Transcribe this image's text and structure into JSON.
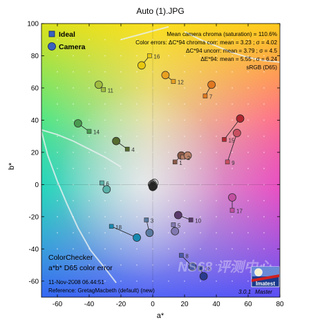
{
  "chart_data": {
    "type": "scatter",
    "title": "Auto (1).JPG",
    "xlabel": "a*",
    "ylabel": "b*",
    "xlim": [
      -70,
      80
    ],
    "ylim": [
      -70,
      100
    ],
    "xticks": [
      -60,
      -40,
      -20,
      0,
      20,
      40,
      60,
      80
    ],
    "yticks": [
      -60,
      -40,
      -20,
      0,
      20,
      40,
      60,
      80,
      100
    ],
    "grid": false,
    "legend": {
      "position": "top-left",
      "ideal_label": "Ideal",
      "camera_label": "Camera"
    },
    "annotations": {
      "mean_chroma": "Mean camera chroma (saturation) = 110.6%",
      "err_corr": "Color errors:  ΔC*94 chroma corr:  mean = 3.23 ;  σ = 4.02",
      "err_uncorr": "ΔC*94 uncorr:  mean = 3.79 ;  σ = 4.5",
      "err_e94": "ΔE*94:  mean = 5.55 ;  σ = 6.24",
      "colorspace": "sRGB (D65)",
      "box_title": "ColorChecker",
      "box_subtitle": "a*b* D65 color error",
      "box_date": "11-Nov-2008 06:44:51",
      "box_reference": "Reference: GretagMacbeth (default) (new)",
      "version": "3.0.1",
      "edition": "Master",
      "logo": "Imatest",
      "watermark": "NS68 评测中心"
    },
    "patches": [
      {
        "id": "1",
        "ideal": [
          14,
          14
        ],
        "camera": [
          18,
          18
        ],
        "color": "#8a5a48"
      },
      {
        "id": "2",
        "ideal": [
          19,
          17
        ],
        "camera": [
          22,
          18
        ],
        "color": "#b88068"
      },
      {
        "id": "3",
        "ideal": [
          -4,
          -22
        ],
        "camera": [
          -2,
          -30
        ],
        "color": "#5a7aa0"
      },
      {
        "id": "4",
        "ideal": [
          -16,
          22
        ],
        "camera": [
          -23,
          27
        ],
        "color": "#556b2f"
      },
      {
        "id": "5",
        "ideal": [
          13,
          -25
        ],
        "camera": [
          14,
          -29
        ],
        "color": "#8278b0"
      },
      {
        "id": "6",
        "ideal": [
          -32,
          1
        ],
        "camera": [
          -29,
          -3
        ],
        "color": "#5ab0a8"
      },
      {
        "id": "7",
        "ideal": [
          33,
          55
        ],
        "camera": [
          37,
          62
        ],
        "color": "#e07820"
      },
      {
        "id": "8",
        "ideal": [
          18,
          -44
        ],
        "camera": [
          25,
          -51
        ],
        "color": "#4a5aa8"
      },
      {
        "id": "9",
        "ideal": [
          47,
          14
        ],
        "camera": [
          53,
          32
        ],
        "color": "#c85060"
      },
      {
        "id": "10",
        "ideal": [
          24,
          -22
        ],
        "camera": [
          16,
          -19
        ],
        "color": "#5a3a6a"
      },
      {
        "id": "11",
        "ideal": [
          -31,
          59
        ],
        "camera": [
          -34,
          62
        ],
        "color": "#a0bc40"
      },
      {
        "id": "12",
        "ideal": [
          13,
          64
        ],
        "camera": [
          8,
          68
        ],
        "color": "#e8a020"
      },
      {
        "id": "13",
        "ideal": [
          30,
          -52
        ],
        "camera": [
          32,
          -57
        ],
        "color": "#2a3a90"
      },
      {
        "id": "14",
        "ideal": [
          -40,
          33
        ],
        "camera": [
          -47,
          38
        ],
        "color": "#4a9a50"
      },
      {
        "id": "15",
        "ideal": [
          45,
          28
        ],
        "camera": [
          55,
          41
        ],
        "color": "#b02830"
      },
      {
        "id": "16",
        "ideal": [
          -2,
          80
        ],
        "camera": [
          -7,
          74
        ],
        "color": "#e8c810"
      },
      {
        "id": "17",
        "ideal": [
          50,
          -16
        ],
        "camera": [
          50,
          -8
        ],
        "color": "#c050a0"
      },
      {
        "id": "18",
        "ideal": [
          -26,
          -26
        ],
        "camera": [
          -10,
          -33
        ],
        "color": "#1888b0"
      },
      {
        "id": "19",
        "ideal": [
          0,
          0
        ],
        "camera": [
          1,
          1
        ],
        "color": "#f0f0f0"
      },
      {
        "id": "20",
        "ideal": [
          0,
          0
        ],
        "camera": [
          0,
          0.5
        ],
        "color": "#c8c8c8"
      },
      {
        "id": "21",
        "ideal": [
          0,
          0
        ],
        "camera": [
          -0.5,
          0
        ],
        "color": "#a0a0a0"
      },
      {
        "id": "22",
        "ideal": [
          0,
          0
        ],
        "camera": [
          0,
          -0.5
        ],
        "color": "#787878"
      },
      {
        "id": "23",
        "ideal": [
          0,
          0
        ],
        "camera": [
          0.5,
          -1
        ],
        "color": "#505050"
      },
      {
        "id": "24",
        "ideal": [
          0,
          0
        ],
        "camera": [
          0,
          -1.5
        ],
        "color": "#282828"
      }
    ]
  }
}
